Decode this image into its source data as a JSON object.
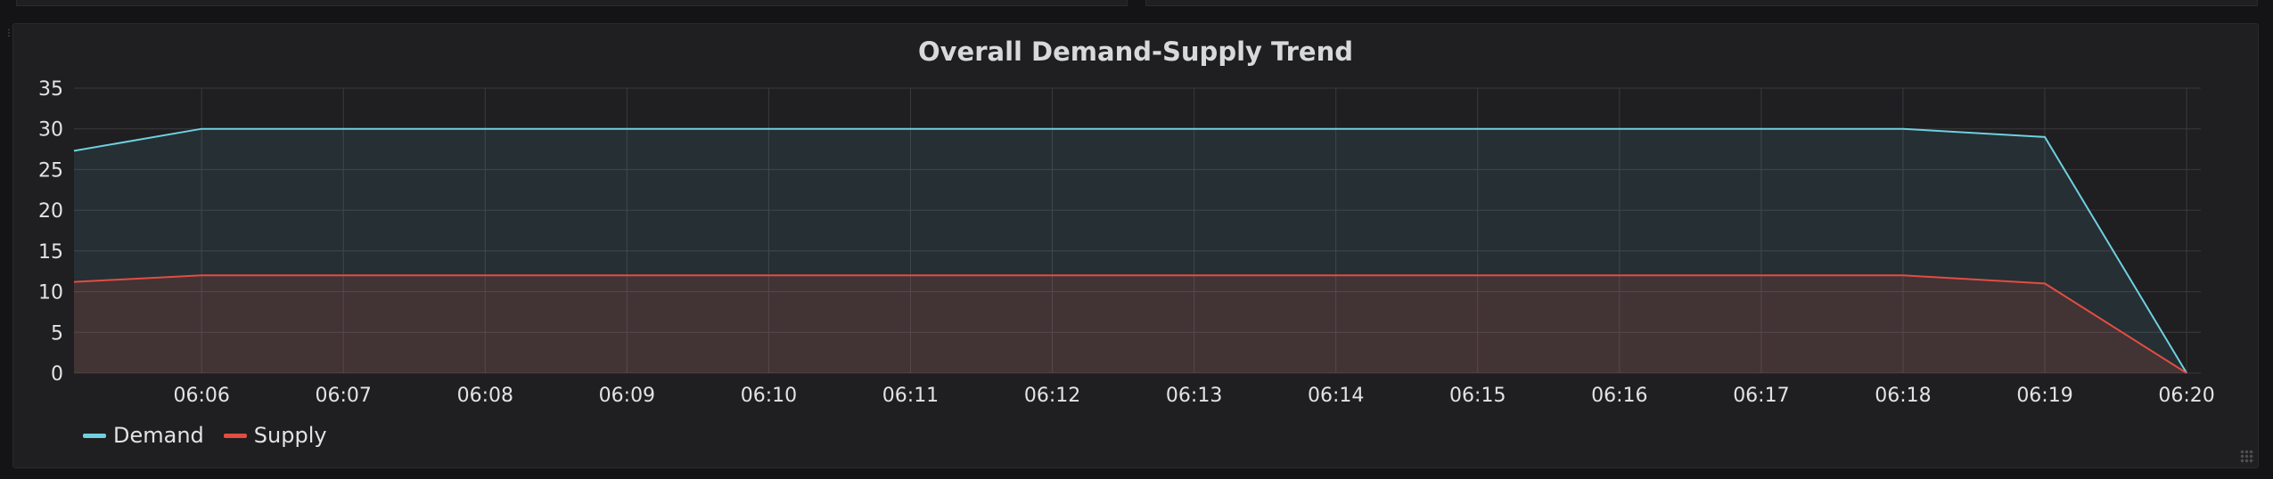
{
  "panel": {
    "title": "Overall Demand-Supply Trend"
  },
  "legend": [
    {
      "label": "Demand",
      "color": "#6ed0e0"
    },
    {
      "label": "Supply",
      "color": "#e24d42"
    }
  ],
  "chart_data": {
    "type": "area",
    "title": "Overall Demand-Supply Trend",
    "xlabel": "",
    "ylabel": "",
    "ylim": [
      0,
      35
    ],
    "yticks": [
      0,
      5,
      10,
      15,
      20,
      25,
      30,
      35
    ],
    "xticks": [
      "06:06",
      "06:07",
      "06:08",
      "06:09",
      "06:10",
      "06:11",
      "06:12",
      "06:13",
      "06:14",
      "06:15",
      "06:16",
      "06:17",
      "06:18",
      "06:19",
      "06:20"
    ],
    "xlim_minutes": [
      5.1,
      20.1
    ],
    "grid": true,
    "legend_position": "bottom-left",
    "series": [
      {
        "name": "Demand",
        "color": "#6ed0e0",
        "points": [
          {
            "x": "06:05.1",
            "t": 5.1,
            "y": 27.3
          },
          {
            "x": "06:06",
            "t": 6,
            "y": 30
          },
          {
            "x": "06:07",
            "t": 7,
            "y": 30
          },
          {
            "x": "06:08",
            "t": 8,
            "y": 30
          },
          {
            "x": "06:09",
            "t": 9,
            "y": 30
          },
          {
            "x": "06:10",
            "t": 10,
            "y": 30
          },
          {
            "x": "06:11",
            "t": 11,
            "y": 30
          },
          {
            "x": "06:12",
            "t": 12,
            "y": 30
          },
          {
            "x": "06:13",
            "t": 13,
            "y": 30
          },
          {
            "x": "06:14",
            "t": 14,
            "y": 30
          },
          {
            "x": "06:15",
            "t": 15,
            "y": 30
          },
          {
            "x": "06:16",
            "t": 16,
            "y": 30
          },
          {
            "x": "06:17",
            "t": 17,
            "y": 30
          },
          {
            "x": "06:18",
            "t": 18,
            "y": 30
          },
          {
            "x": "06:19",
            "t": 19,
            "y": 29
          },
          {
            "x": "06:20",
            "t": 20,
            "y": 0
          }
        ]
      },
      {
        "name": "Supply",
        "color": "#e24d42",
        "points": [
          {
            "x": "06:05.1",
            "t": 5.1,
            "y": 11.2
          },
          {
            "x": "06:06",
            "t": 6,
            "y": 12
          },
          {
            "x": "06:07",
            "t": 7,
            "y": 12
          },
          {
            "x": "06:08",
            "t": 8,
            "y": 12
          },
          {
            "x": "06:09",
            "t": 9,
            "y": 12
          },
          {
            "x": "06:10",
            "t": 10,
            "y": 12
          },
          {
            "x": "06:11",
            "t": 11,
            "y": 12
          },
          {
            "x": "06:12",
            "t": 12,
            "y": 12
          },
          {
            "x": "06:13",
            "t": 13,
            "y": 12
          },
          {
            "x": "06:14",
            "t": 14,
            "y": 12
          },
          {
            "x": "06:15",
            "t": 15,
            "y": 12
          },
          {
            "x": "06:16",
            "t": 16,
            "y": 12
          },
          {
            "x": "06:17",
            "t": 17,
            "y": 12
          },
          {
            "x": "06:18",
            "t": 18,
            "y": 12
          },
          {
            "x": "06:19",
            "t": 19,
            "y": 11
          },
          {
            "x": "06:20",
            "t": 20,
            "y": 0
          }
        ]
      }
    ]
  }
}
